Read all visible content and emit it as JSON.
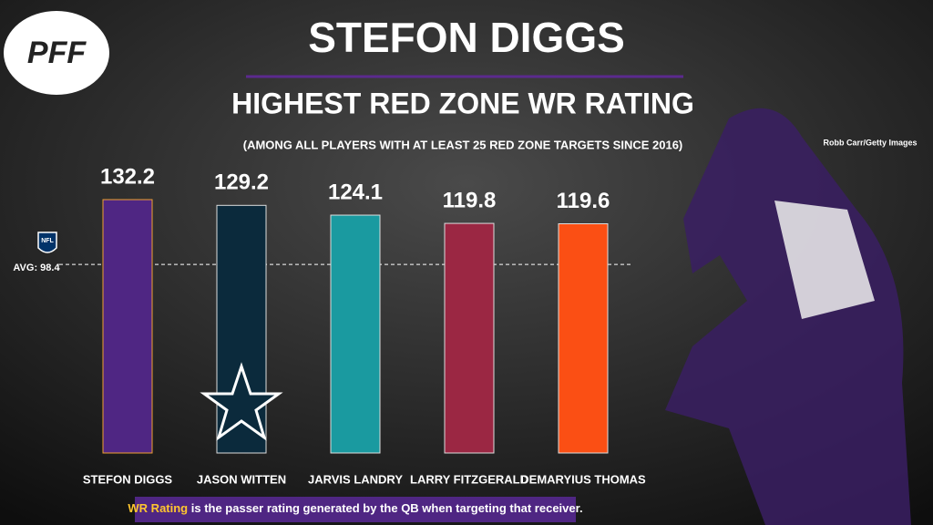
{
  "logo": "PFF",
  "photo_credit": "Robb Carr/Getty Images",
  "chart_data": {
    "type": "bar",
    "title": "STEFON DIGGS",
    "subtitle": "HIGHEST RED ZONE WR RATING",
    "note": "(AMONG ALL PLAYERS WITH AT LEAST 25 RED ZONE TARGETS SINCE 2016)",
    "categories": [
      "STEFON DIGGS",
      "JASON WITTEN",
      "JARVIS LANDRY",
      "LARRY FITZGERALD",
      "DEMARYIUS THOMAS"
    ],
    "values": [
      132.2,
      129.2,
      124.1,
      119.8,
      119.6
    ],
    "colors": [
      "#4f2683",
      "#0b2a3c",
      "#1a9aa0",
      "#9b2743",
      "#fb4f14"
    ],
    "average": {
      "value": 98.4,
      "label": "AVG: 98.4"
    },
    "average_badge": "NFL",
    "footnote": {
      "term": "WR Rating",
      "text": " is the passer rating generated by the QB when targeting that receiver."
    }
  }
}
